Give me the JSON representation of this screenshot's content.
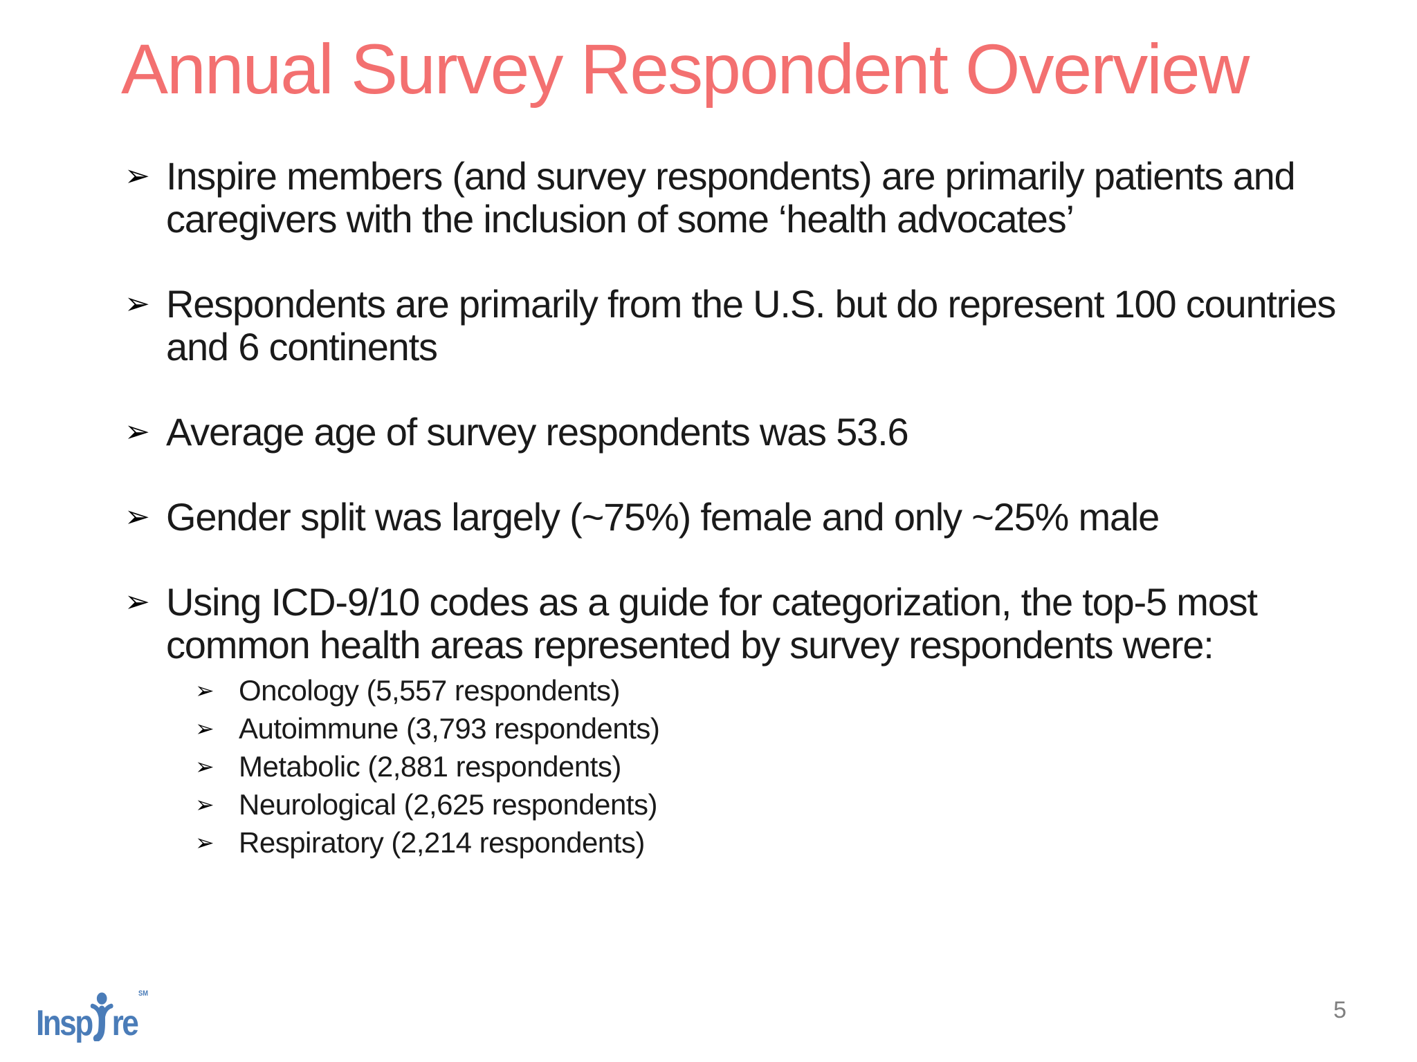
{
  "slide": {
    "title": "Annual Survey Respondent Overview",
    "bullet_glyph": "➢",
    "bullets": [
      {
        "text": "Inspire members (and survey respondents) are primarily patients and\ncaregivers with the inclusion of some ‘health advocates’",
        "sub": []
      },
      {
        "text": "Respondents are primarily from the U.S. but do represent 100 countries\nand 6 continents",
        "sub": []
      },
      {
        "text": "Average age of survey respondents was 53.6",
        "sub": []
      },
      {
        "text": "Gender split was largely (~75%) female and only ~25% male",
        "sub": []
      },
      {
        "text": "Using ICD-9/10 codes as a guide for categorization, the top-5 most\ncommon health areas represented by survey respondents were:",
        "sub": [
          "Oncology (5,557 respondents)",
          "Autoimmune (3,793 respondents)",
          "Metabolic (2,881 respondents)",
          "Neurological (2,625 respondents)",
          "Respiratory (2,214 respondents)"
        ]
      }
    ],
    "logo": {
      "name": "Inspire",
      "text_left": "Insp",
      "text_right": "re",
      "trademark": "SM"
    },
    "page_number": "5",
    "colors": {
      "title": "#F37070",
      "text": "#1A1A1A",
      "logo_blue": "#4A7CB8",
      "page_number": "#7F7F7F",
      "background": "#FFFFFF"
    }
  }
}
